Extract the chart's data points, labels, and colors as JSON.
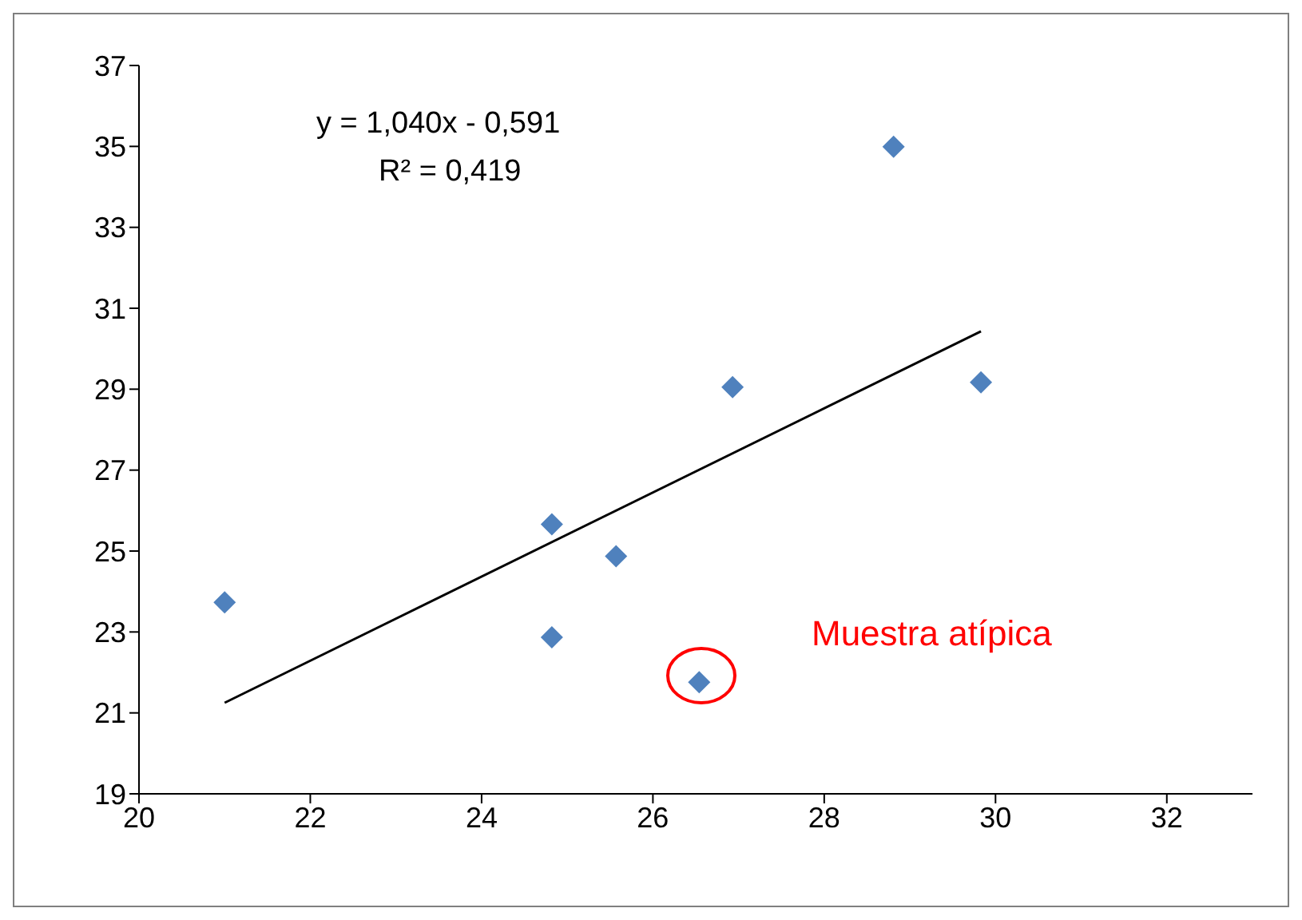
{
  "chart_data": {
    "type": "scatter",
    "marker": "diamond",
    "grid": false,
    "xlim": [
      20,
      33
    ],
    "xticks": [
      20,
      22,
      24,
      26,
      28,
      30,
      32
    ],
    "ylim": [
      19,
      37
    ],
    "yticks": [
      19,
      21,
      23,
      25,
      27,
      29,
      31,
      33,
      35,
      37
    ],
    "series": [
      {
        "color": "#4f81bd",
        "x": [
          21.0,
          24.82,
          24.82,
          25.57,
          26.54,
          26.93,
          28.81,
          29.83
        ],
        "values": [
          23.73,
          25.66,
          22.87,
          24.87,
          21.76,
          29.05,
          34.99,
          29.17
        ]
      },
      {
        "type": "line",
        "marker": "none",
        "color": "#000000",
        "x": [
          21.0,
          29.83
        ],
        "values": [
          21.25,
          30.43
        ]
      }
    ],
    "annotations": [
      "y = 1,040x - 0,591",
      "R² = 0,419",
      "Muestra atípica"
    ]
  }
}
